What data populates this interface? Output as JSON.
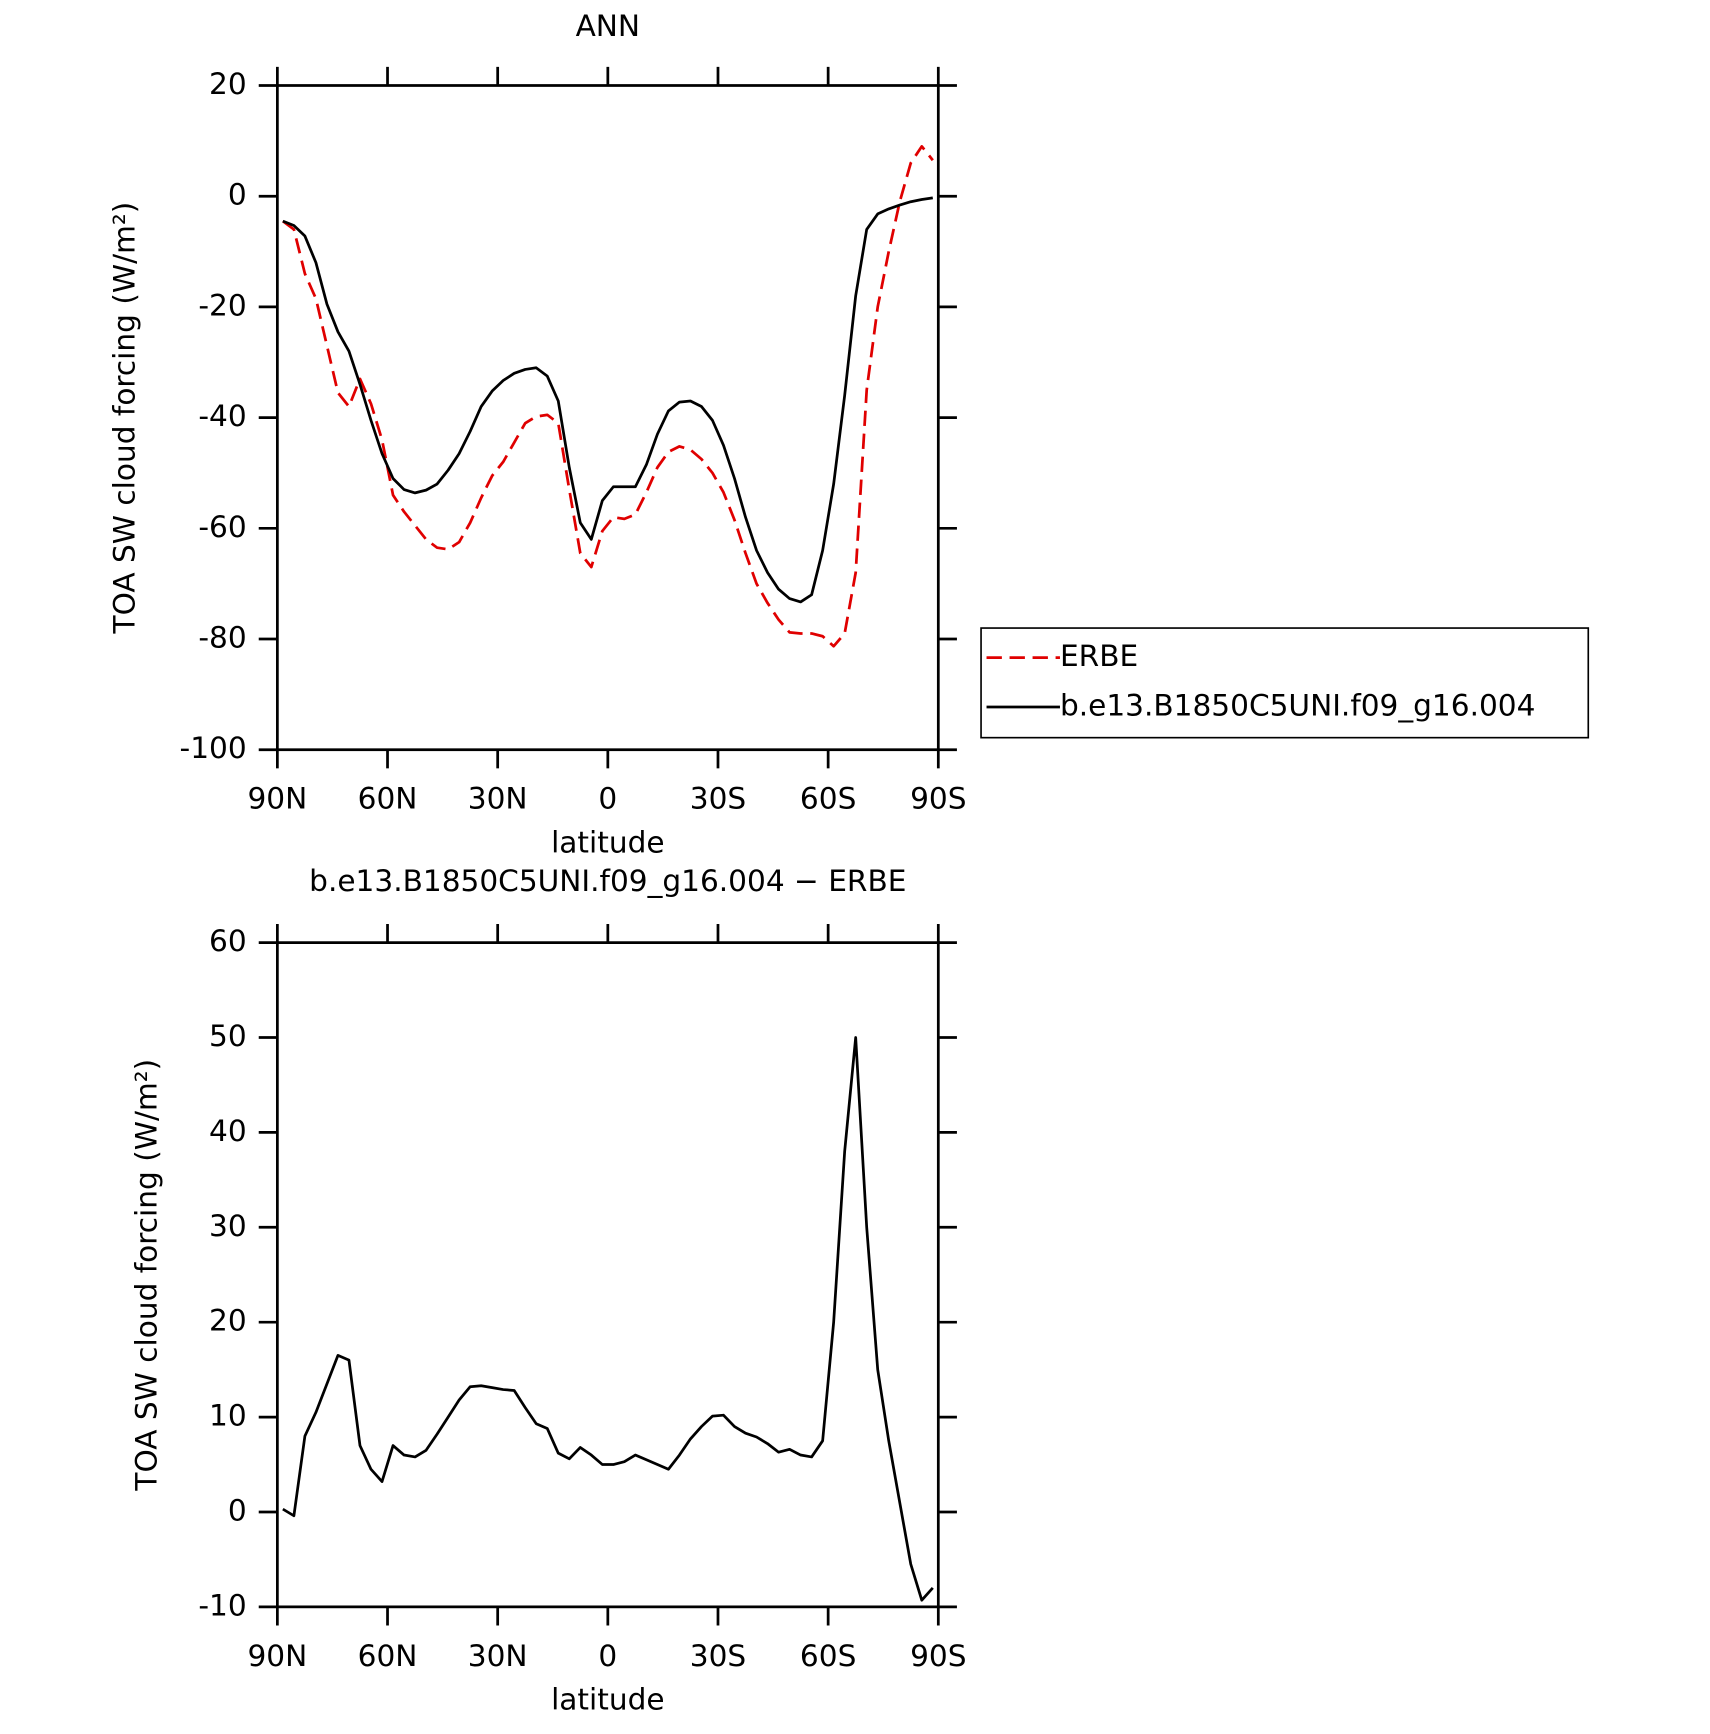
{
  "chart_data": [
    {
      "type": "line",
      "title": "ANN",
      "xlabel": "latitude",
      "ylabel": "TOA SW cloud forcing (W/m²)",
      "x": [
        88.5,
        85.5,
        82.5,
        79.5,
        76.5,
        73.5,
        70.5,
        67.5,
        64.5,
        61.5,
        58.5,
        55.5,
        52.5,
        49.5,
        46.5,
        43.5,
        40.5,
        37.5,
        34.5,
        31.5,
        28.5,
        25.5,
        22.5,
        19.5,
        16.5,
        13.5,
        10.5,
        7.5,
        4.5,
        1.5,
        -1.5,
        -4.5,
        -7.5,
        -10.5,
        -13.5,
        -16.5,
        -19.5,
        -22.5,
        -25.5,
        -28.5,
        -31.5,
        -34.5,
        -37.5,
        -40.5,
        -43.5,
        -46.5,
        -49.5,
        -52.5,
        -55.5,
        -58.5,
        -61.5,
        -64.5,
        -67.5,
        -70.5,
        -73.5,
        -76.5,
        -79.5,
        -82.5,
        -85.5,
        -88.5
      ],
      "xlim": [
        90,
        -90
      ],
      "xticks": [
        {
          "value": 90,
          "label": "90N"
        },
        {
          "value": 60,
          "label": "60N"
        },
        {
          "value": 30,
          "label": "30N"
        },
        0,
        {
          "value": -30,
          "label": "30S"
        },
        {
          "value": -60,
          "label": "60S"
        },
        {
          "value": -90,
          "label": "90S"
        }
      ],
      "ylim": [
        -100,
        20
      ],
      "yticks": [
        -100,
        -80,
        -60,
        -40,
        -20,
        0,
        20
      ],
      "legend": "right",
      "series": [
        {
          "name": "ERBE",
          "color": "#e00000",
          "linestyle": "dashed",
          "values": [
            -4.5,
            -6,
            -14,
            -18.5,
            -27,
            -35.5,
            -38,
            -33,
            -37.5,
            -44,
            -54,
            -57,
            -59.5,
            -62,
            -63.5,
            -63.8,
            -62.5,
            -59,
            -54.5,
            -50.5,
            -48,
            -44.5,
            -41,
            -39.8,
            -39.5,
            -41,
            -53,
            -64.5,
            -67,
            -60.5,
            -58,
            -58.3,
            -57.5,
            -53.5,
            -49,
            -46.2,
            -45.2,
            -45.8,
            -47.5,
            -50,
            -53.5,
            -58.5,
            -64.5,
            -70,
            -73.5,
            -76.5,
            -78.8,
            -79,
            -79,
            -79.5,
            -81.3,
            -79,
            -68,
            -35,
            -20,
            -10,
            -1,
            6,
            9,
            6.5
          ]
        },
        {
          "name": "b.e13.B1850C5UNI.f09_g16.004",
          "color": "#000000",
          "linestyle": "solid",
          "values": [
            -4.5,
            -5.3,
            -7.2,
            -12,
            -19.5,
            -24.5,
            -28,
            -34,
            -40.5,
            -46.5,
            -51,
            -53,
            -53.6,
            -53.1,
            -52,
            -49.5,
            -46.5,
            -42.5,
            -38,
            -35.2,
            -33.3,
            -32,
            -31.3,
            -31,
            -32.5,
            -37,
            -49,
            -59,
            -62,
            -55,
            -52.5,
            -52.5,
            -52.5,
            -48.5,
            -43,
            -38.8,
            -37.2,
            -37,
            -38,
            -40.5,
            -45,
            -51,
            -58,
            -64,
            -68,
            -71,
            -72.7,
            -73.3,
            -72,
            -64,
            -52,
            -36,
            -18,
            -6,
            -3.2,
            -2.3,
            -1.6,
            -1,
            -0.6,
            -0.3
          ]
        }
      ]
    },
    {
      "type": "line",
      "title": "b.e13.B1850C5UNI.f09_g16.004 − ERBE",
      "xlabel": "latitude",
      "ylabel": "TOA SW cloud forcing (W/m²)",
      "x": [
        88.5,
        85.5,
        82.5,
        79.5,
        76.5,
        73.5,
        70.5,
        67.5,
        64.5,
        61.5,
        58.5,
        55.5,
        52.5,
        49.5,
        46.5,
        43.5,
        40.5,
        37.5,
        34.5,
        31.5,
        28.5,
        25.5,
        22.5,
        19.5,
        16.5,
        13.5,
        10.5,
        7.5,
        4.5,
        1.5,
        -1.5,
        -4.5,
        -7.5,
        -10.5,
        -13.5,
        -16.5,
        -19.5,
        -22.5,
        -25.5,
        -28.5,
        -31.5,
        -34.5,
        -37.5,
        -40.5,
        -43.5,
        -46.5,
        -49.5,
        -52.5,
        -55.5,
        -58.5,
        -61.5,
        -64.5,
        -67.5,
        -70.5,
        -73.5,
        -76.5,
        -79.5,
        -82.5,
        -85.5,
        -88.5
      ],
      "xlim": [
        90,
        -90
      ],
      "xticks": [
        {
          "value": 90,
          "label": "90N"
        },
        {
          "value": 60,
          "label": "60N"
        },
        {
          "value": 30,
          "label": "30N"
        },
        0,
        {
          "value": -30,
          "label": "30S"
        },
        {
          "value": -60,
          "label": "60S"
        },
        {
          "value": -90,
          "label": "90S"
        }
      ],
      "ylim": [
        -10,
        60
      ],
      "yticks": [
        -10,
        0,
        10,
        20,
        30,
        40,
        50,
        60
      ],
      "series": [
        {
          "color": "#000000",
          "linestyle": "solid",
          "values": [
            0.3,
            -0.4,
            8,
            10.5,
            13.5,
            16.5,
            16,
            7,
            4.5,
            3.2,
            7,
            6,
            5.8,
            6.5,
            8.2,
            10,
            11.8,
            13.2,
            13.3,
            13.1,
            12.9,
            12.8,
            11,
            9.3,
            8.8,
            6.2,
            5.6,
            6.8,
            6,
            5,
            5,
            5.3,
            6,
            5.5,
            5,
            4.5,
            6,
            7.7,
            9,
            10.1,
            10.2,
            9,
            8.3,
            7.9,
            7.2,
            6.3,
            6.6,
            6,
            5.8,
            7.5,
            20,
            38,
            50,
            30,
            15,
            7.5,
            1,
            -5.5,
            -9.3,
            -8
          ]
        }
      ]
    }
  ]
}
